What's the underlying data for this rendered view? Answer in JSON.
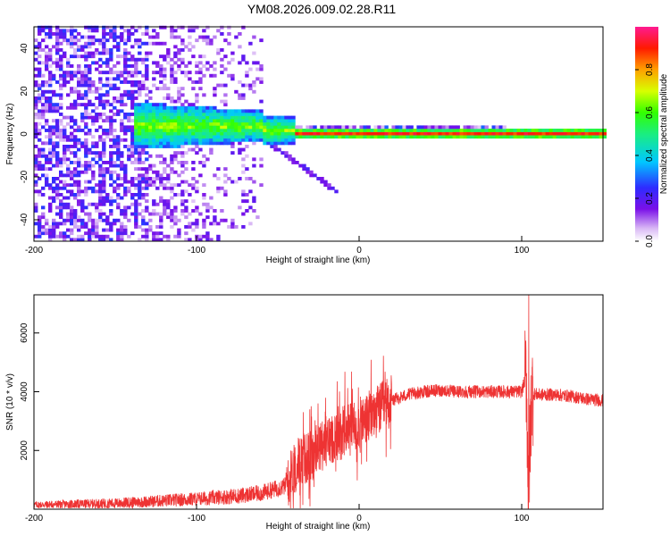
{
  "title": "YM08.2026.009.02.28.R11",
  "chart_data": [
    {
      "type": "heatmap",
      "name": "spectrogram",
      "xlabel": "Height of straight line (km)",
      "ylabel": "Frequency (Hz)",
      "xlim": [
        -200,
        150
      ],
      "ylim": [
        -50,
        50
      ],
      "xticks": [
        "-200",
        "-100",
        "0",
        "100"
      ],
      "yticks": [
        "-40",
        "-20",
        "0",
        "20",
        "40"
      ],
      "description_values": {
        "carrier_frequency_hz": 0,
        "noise_region_end_km": -60,
        "spread_region_km": [
          -140,
          -40
        ],
        "strong_carrier_from_km": -40
      },
      "colorbar": {
        "label": "Normalized spectral amplitude",
        "range": [
          0,
          1
        ],
        "ticks": [
          "0.0",
          "0.2",
          "0.4",
          "0.6",
          "0.8"
        ]
      }
    },
    {
      "type": "line",
      "name": "snr",
      "xlabel": "Height of straight line (km)",
      "ylabel": "SNR (10 * v/v)",
      "xlim": [
        -200,
        150
      ],
      "ylim": [
        0,
        7300
      ],
      "xticks": [
        "-200",
        "-100",
        "0",
        "100"
      ],
      "yticks": [
        "2000",
        "4000",
        "6000"
      ],
      "color": "#ee3333",
      "x": [
        -200,
        -150,
        -100,
        -75,
        -60,
        -45,
        -38,
        -30,
        -20,
        -10,
        0,
        10,
        20,
        30,
        40,
        50,
        60,
        70,
        80,
        90,
        100,
        103,
        104,
        106,
        110,
        120,
        130,
        140,
        150
      ],
      "y": [
        150,
        200,
        350,
        450,
        550,
        800,
        1600,
        1800,
        2300,
        2700,
        2900,
        3300,
        3700,
        3900,
        4000,
        4050,
        4000,
        4000,
        4000,
        4000,
        4000,
        4600,
        200,
        3950,
        3900,
        3900,
        3850,
        3750,
        3700
      ]
    }
  ]
}
